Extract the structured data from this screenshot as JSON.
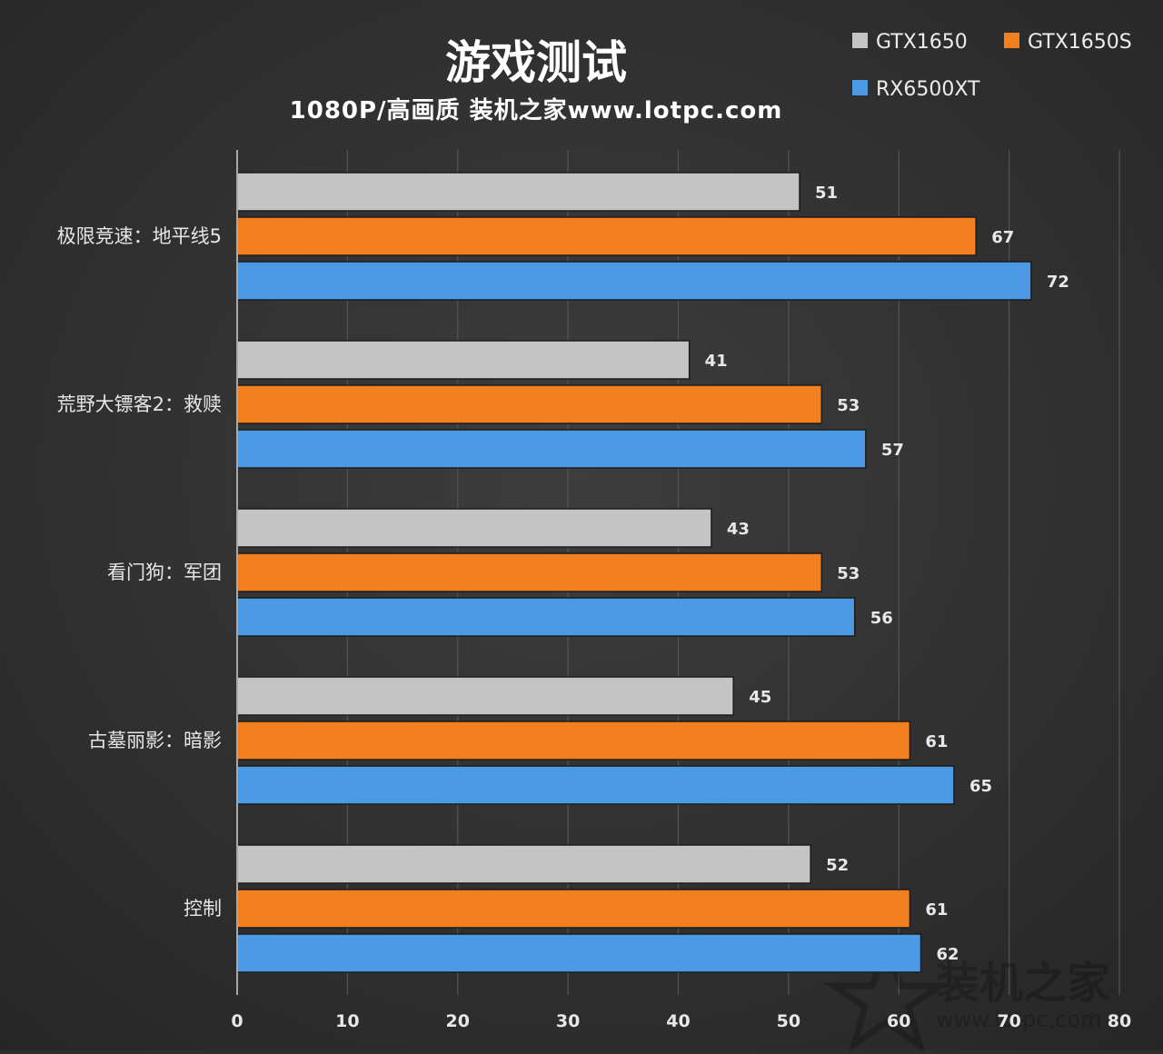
{
  "chart_data": {
    "type": "bar",
    "orientation": "horizontal",
    "title": "游戏测试",
    "subtitle": "1080P/高画质 装机之家www.lotpc.com",
    "categories": [
      "极限竞速：地平线5",
      "荒野大镖客2：救赎",
      "看门狗：军团",
      "古墓丽影：暗影",
      "控制"
    ],
    "series": [
      {
        "name": "GTX1650",
        "color": "#c4c4c4",
        "values": [
          51,
          41,
          43,
          45,
          52
        ]
      },
      {
        "name": "GTX1650S",
        "color": "#f2801f",
        "values": [
          67,
          53,
          53,
          61,
          61
        ]
      },
      {
        "name": "RX6500XT",
        "color": "#4c9ae6",
        "values": [
          72,
          57,
          56,
          65,
          62
        ]
      }
    ],
    "xlim": [
      0,
      80
    ],
    "xticks": [
      "0",
      "10",
      "20",
      "30",
      "40",
      "50",
      "60",
      "70",
      "80"
    ],
    "grid": true,
    "legend": "top-right",
    "data_labels": true,
    "watermark": {
      "logo": "装机之家",
      "url": "www.lotpc.com"
    }
  }
}
